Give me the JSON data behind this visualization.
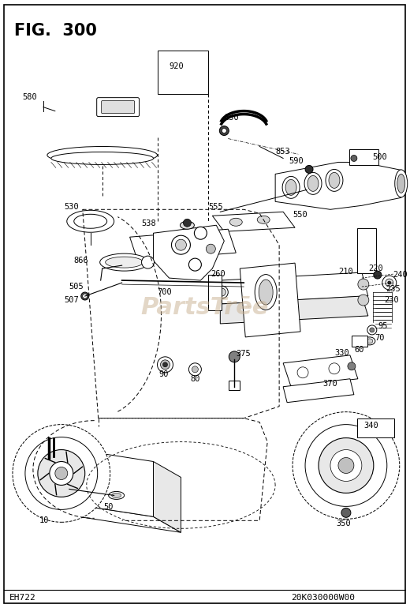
{
  "title": "FIG.  300",
  "footer_left": "EH722",
  "footer_right": "20K030000W00",
  "watermark": "PartsTrēe",
  "bg_color": "#ffffff",
  "border_color": "#000000"
}
